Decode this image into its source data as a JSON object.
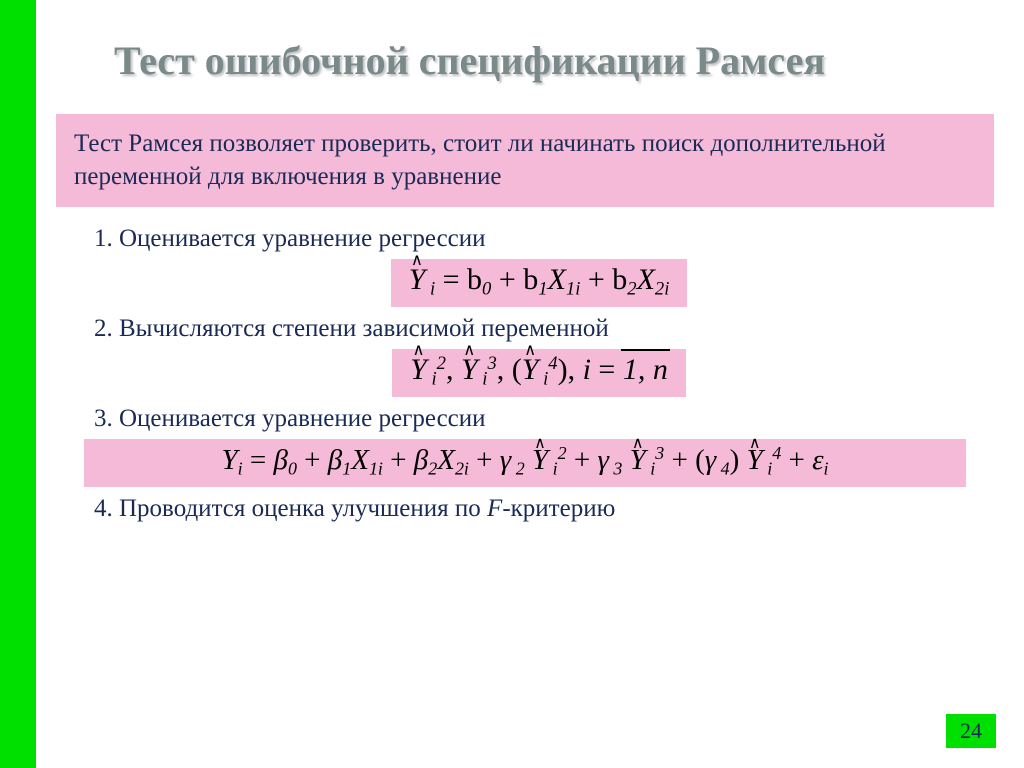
{
  "colors": {
    "accent_green": "#00e000",
    "highlight_pink": "#f5bad8",
    "title_color": "#7a8a8a",
    "body_text": "#1a2a55",
    "formula_text": "#000000",
    "background": "#ffffff"
  },
  "title": "Тест ошибочной спецификации Рамсея",
  "intro": "Тест Рамсея позволяет проверить, стоит ли начинать поиск дополнительной переменной для включения в уравнение",
  "steps": {
    "s1_num": "1.",
    "s1_text": " Оценивается уравнение регрессии",
    "s2_num": "2.",
    "s2_text": " Вычисляются степени зависимой переменной",
    "s3_num": "3.",
    "s3_text": " Оценивается уравнение регрессии",
    "s4_num": "4.",
    "s4_text_a": " Проводится оценка улучшения по ",
    "s4_text_b": "F",
    "s4_text_c": "-критерию"
  },
  "formulas": {
    "f1": {
      "pre": "Y",
      "sub1": " i",
      "eq": " = b",
      "b0s": "0",
      "p1": " + b",
      "b1s": "1",
      "x1": "X",
      "x1s": "1i",
      "p2": " + b",
      "b2s": "2",
      "x2": "X",
      "x2s": "2i"
    },
    "f2": {
      "y": "Y",
      "ys": " i",
      "p2": "2",
      "c": ", ",
      "p3": "3",
      "op": ", (",
      "p4": "4",
      "cp": "),    ",
      "i": "i",
      "eq": " = ",
      "bar": "1, n"
    },
    "f3": {
      "y": "Y",
      "ys": "i",
      "eq": " = ",
      "b": "β",
      "b0s": "0",
      "pl": " + ",
      "b1s": "1",
      "x": "X",
      "x1s": "1i",
      "b2s": "2",
      "x2s": "2i",
      "g": "γ",
      "g2s": " 2",
      "yh": "Y",
      "yhs": " i",
      "pw2": "2",
      "g3s": " 3",
      "pw3": "3",
      "op": " + (",
      "g4s": " 4",
      "cp": ")",
      "pw4": "4",
      "eps": "ε",
      "epss": "i"
    }
  },
  "page_number": "24"
}
